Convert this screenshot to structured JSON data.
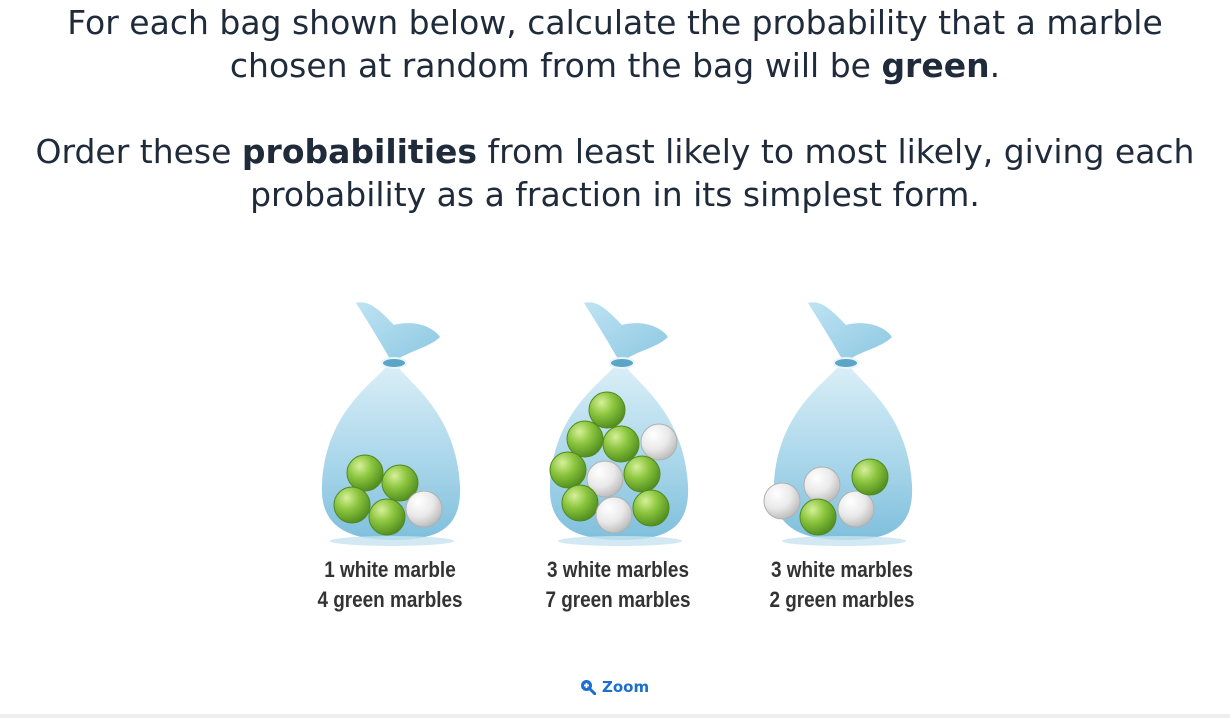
{
  "question": {
    "p1_before": "For each bag shown below, calculate the probability that a marble chosen at random from the bag will be ",
    "p1_bold": "green",
    "p1_after": ".",
    "p2_before": "Order these ",
    "p2_bold": "probabilities",
    "p2_after": " from least likely to most likely, giving each probability as a fraction in its simplest form."
  },
  "bags": [
    {
      "line1": "1 white marble",
      "line2": "4 green marbles",
      "white": 1,
      "green": 4
    },
    {
      "line1": "3 white marbles",
      "line2": "7 green marbles",
      "white": 3,
      "green": 7
    },
    {
      "line1": "3 white marbles",
      "line2": "2 green marbles",
      "white": 3,
      "green": 2
    }
  ],
  "zoom": {
    "label": "Zoom",
    "icon": "zoom-in-icon"
  },
  "colors": {
    "text": "#1f2a3a",
    "bag": "#8cc8e2",
    "green_marble": "#7ab82e",
    "white_marble": "#e8e8e8",
    "link": "#1a6fcf"
  }
}
